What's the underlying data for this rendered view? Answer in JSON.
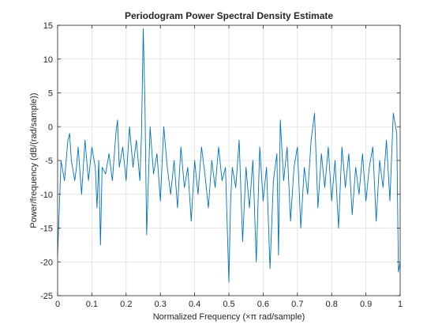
{
  "chart_data": {
    "type": "line",
    "title": "Periodogram Power Spectral Density Estimate",
    "xlabel": "Normalized Frequency  (×π rad/sample)",
    "ylabel": "Power/frequency (dB/(rad/sample))",
    "xlim": [
      0,
      1
    ],
    "ylim": [
      -25,
      15
    ],
    "xticks": [
      "0",
      "0.1",
      "0.2",
      "0.3",
      "0.4",
      "0.5",
      "0.6",
      "0.7",
      "0.8",
      "0.9",
      "1"
    ],
    "yticks": [
      "15",
      "10",
      "5",
      "0",
      "-5",
      "-10",
      "-15",
      "-20",
      "-25"
    ],
    "grid": true,
    "line_color": "#0072BD",
    "series": [
      {
        "x": [
          0,
          0.01,
          0.02,
          0.03,
          0.035,
          0.04,
          0.05,
          0.055,
          0.06,
          0.07,
          0.08,
          0.09,
          0.1,
          0.11,
          0.115,
          0.12,
          0.125,
          0.13,
          0.14,
          0.15,
          0.16,
          0.17,
          0.175,
          0.18,
          0.19,
          0.2,
          0.21,
          0.22,
          0.23,
          0.24,
          0.245,
          0.25,
          0.255,
          0.26,
          0.265,
          0.27,
          0.28,
          0.29,
          0.3,
          0.31,
          0.32,
          0.33,
          0.34,
          0.35,
          0.36,
          0.37,
          0.38,
          0.39,
          0.4,
          0.41,
          0.42,
          0.43,
          0.44,
          0.45,
          0.46,
          0.47,
          0.48,
          0.49,
          0.5,
          0.505,
          0.51,
          0.52,
          0.53,
          0.54,
          0.55,
          0.56,
          0.57,
          0.58,
          0.59,
          0.6,
          0.61,
          0.62,
          0.63,
          0.64,
          0.645,
          0.65,
          0.66,
          0.67,
          0.68,
          0.69,
          0.7,
          0.71,
          0.72,
          0.73,
          0.74,
          0.75,
          0.76,
          0.77,
          0.78,
          0.79,
          0.8,
          0.81,
          0.82,
          0.83,
          0.84,
          0.85,
          0.86,
          0.87,
          0.88,
          0.89,
          0.9,
          0.91,
          0.92,
          0.93,
          0.94,
          0.95,
          0.96,
          0.97,
          0.98,
          0.99,
          0.995,
          1
        ],
        "y": [
          -19,
          -5,
          -8,
          -2,
          -1,
          -5,
          -8,
          -6,
          -3,
          -10,
          -2,
          -8,
          -3,
          -6,
          -12,
          -5,
          -17.5,
          -6,
          -7,
          -4,
          -8,
          -1,
          1,
          -6,
          -3,
          -8,
          0,
          -6,
          -2,
          -8,
          -1,
          14.5,
          3,
          -16,
          -8,
          0,
          -7,
          -4,
          -11,
          0,
          -6,
          -10,
          -5,
          -12,
          -3,
          -9,
          -6,
          -14,
          -5,
          -10,
          -3,
          -7,
          -12,
          -5,
          -9,
          -3,
          -8,
          -6,
          -23,
          -11,
          -6,
          -9,
          -2,
          -17,
          -6,
          -12,
          -5,
          -20,
          -3,
          -11,
          -6,
          -21,
          -8,
          -4,
          -19,
          1,
          -8,
          -3,
          -14,
          -6,
          -3,
          -15,
          -6,
          -10,
          -2,
          2,
          -12,
          -4,
          -9,
          -3,
          -11,
          -5,
          -15,
          -3,
          -9,
          -4,
          -13,
          -6,
          -10,
          -4,
          -11,
          -6,
          -3,
          -14,
          -5,
          -9,
          -2,
          -11,
          2,
          -1,
          -21.5,
          -20
        ]
      }
    ]
  }
}
